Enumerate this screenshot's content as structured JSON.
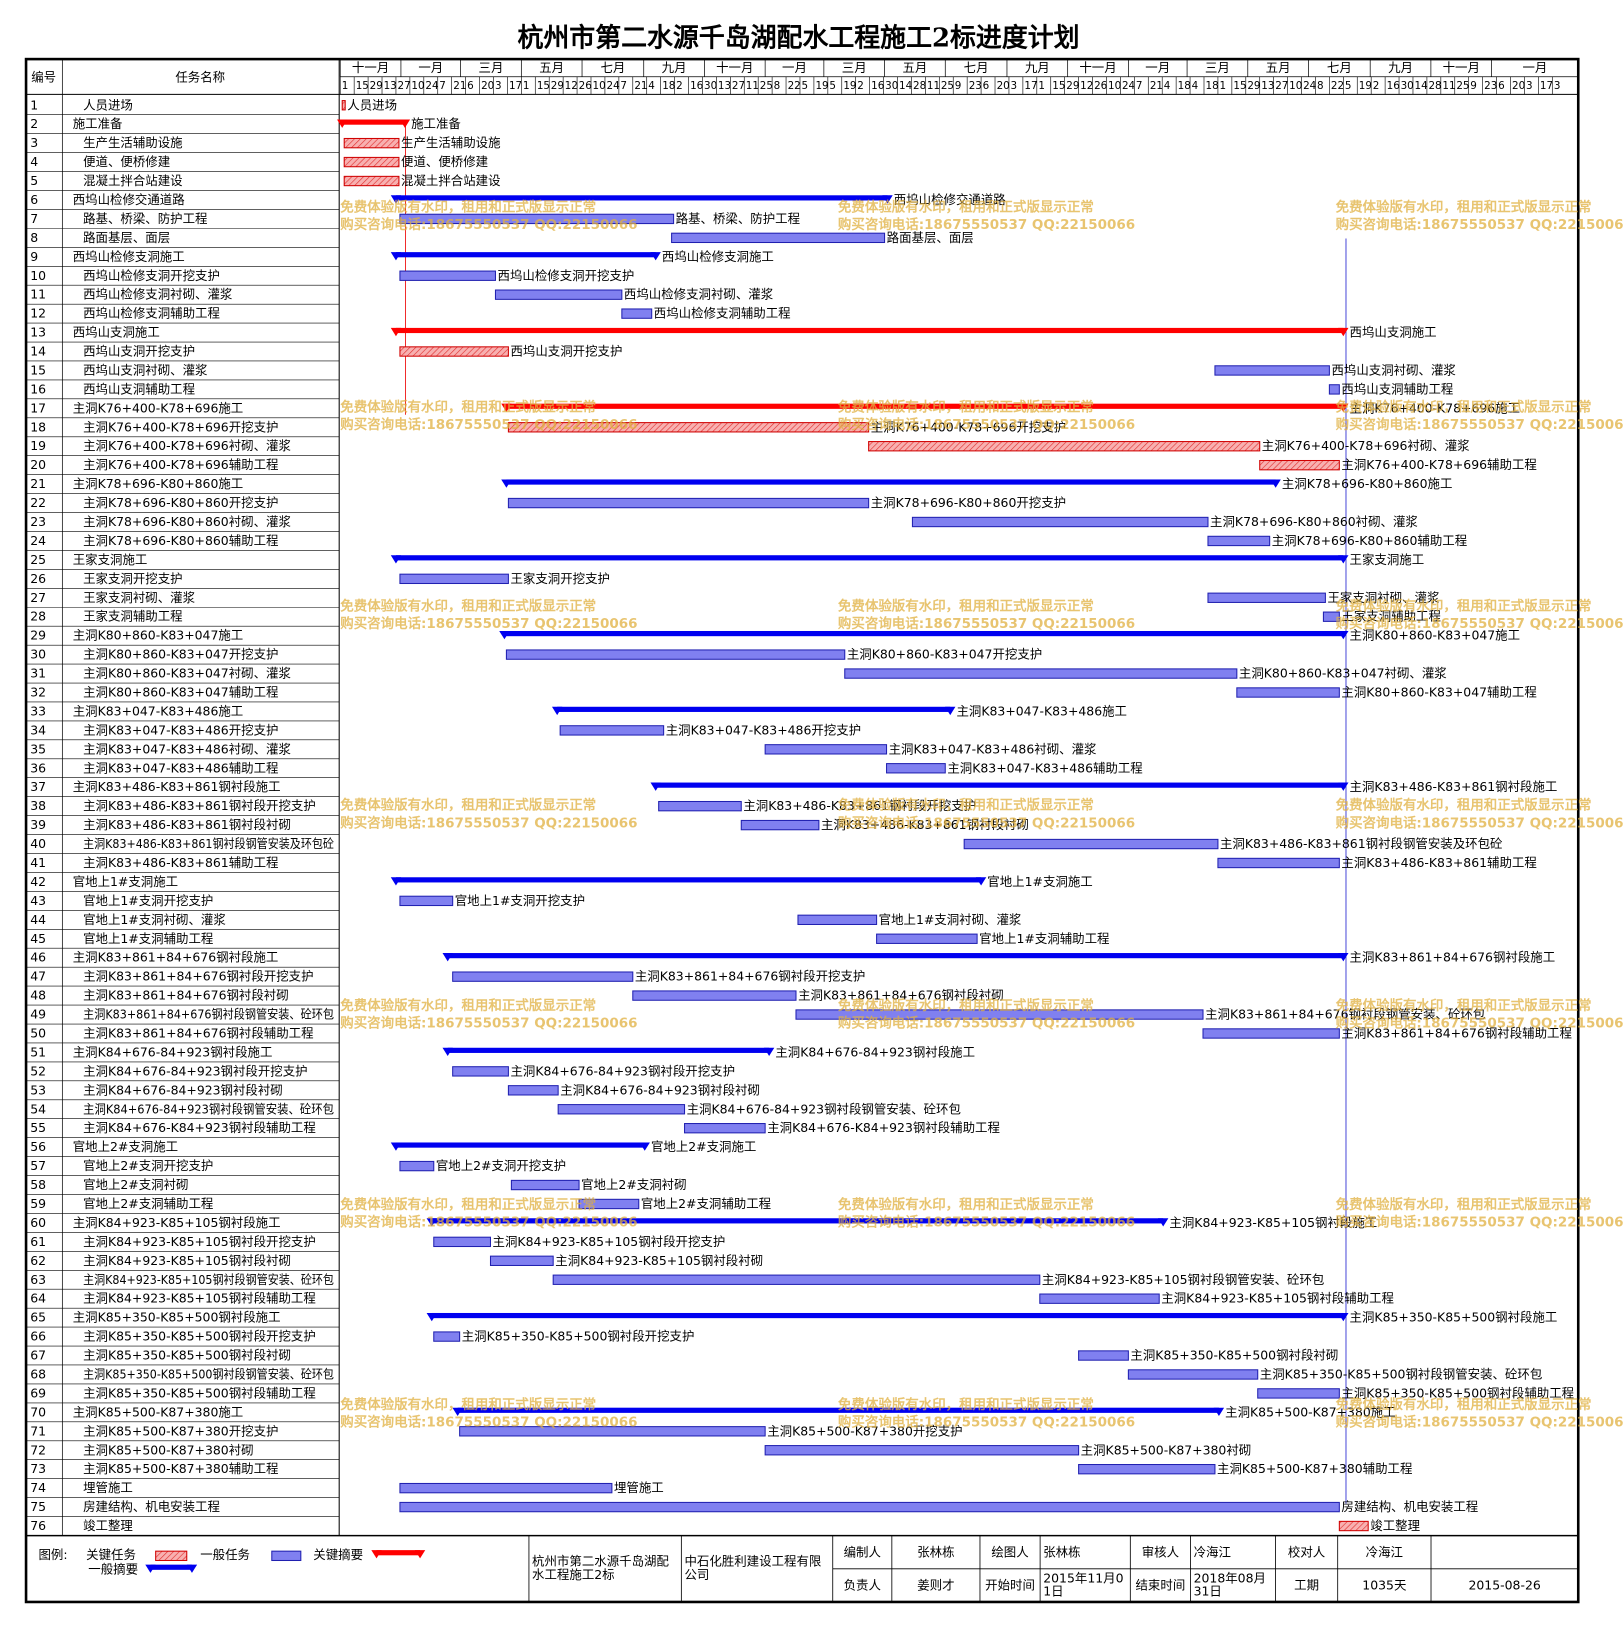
{
  "title": "杭州市第二水源千岛湖配水工程施工2标进度计划",
  "header": {
    "id": "编号",
    "name": "任务名称"
  },
  "timeline": {
    "xlim": [
      0,
      1242
    ],
    "months": [
      {
        "value": 0,
        "label": "十一月"
      },
      {
        "value": 61,
        "label": "一月"
      },
      {
        "value": 121,
        "label": "三月"
      },
      {
        "value": 182,
        "label": "五月"
      },
      {
        "value": 243,
        "label": "七月"
      },
      {
        "value": 305,
        "label": "九月"
      },
      {
        "value": 366,
        "label": "十一月"
      },
      {
        "value": 427,
        "label": "一月"
      },
      {
        "value": 486,
        "label": "三月"
      },
      {
        "value": 547,
        "label": "五月"
      },
      {
        "value": 608,
        "label": "七月"
      },
      {
        "value": 670,
        "label": "九月"
      },
      {
        "value": 731,
        "label": "十一月"
      },
      {
        "value": 792,
        "label": "一月"
      },
      {
        "value": 851,
        "label": "三月"
      },
      {
        "value": 912,
        "label": "五月"
      },
      {
        "value": 973,
        "label": "七月"
      },
      {
        "value": 1035,
        "label": "九月"
      },
      {
        "value": 1096,
        "label": "十一月"
      },
      {
        "value": 1157,
        "label": "一月"
      }
    ],
    "days": [
      {
        "value": 0,
        "label": "1"
      },
      {
        "value": 14,
        "label": "15"
      },
      {
        "value": 28,
        "label": "29"
      },
      {
        "value": 42,
        "label": "13"
      },
      {
        "value": 56,
        "label": "27"
      },
      {
        "value": 70,
        "label": "10"
      },
      {
        "value": 84,
        "label": "24"
      },
      {
        "value": 98,
        "label": "7"
      },
      {
        "value": 112,
        "label": "21"
      },
      {
        "value": 126,
        "label": "6"
      },
      {
        "value": 140,
        "label": "20"
      },
      {
        "value": 154,
        "label": "3"
      },
      {
        "value": 168,
        "label": "17"
      },
      {
        "value": 182,
        "label": "1"
      },
      {
        "value": 196,
        "label": "15"
      },
      {
        "value": 210,
        "label": "29"
      },
      {
        "value": 224,
        "label": "12"
      },
      {
        "value": 238,
        "label": "26"
      },
      {
        "value": 252,
        "label": "10"
      },
      {
        "value": 266,
        "label": "24"
      },
      {
        "value": 280,
        "label": "7"
      },
      {
        "value": 294,
        "label": "21"
      },
      {
        "value": 308,
        "label": "4"
      },
      {
        "value": 322,
        "label": "18"
      },
      {
        "value": 336,
        "label": "2"
      },
      {
        "value": 350,
        "label": "16"
      },
      {
        "value": 364,
        "label": "30"
      },
      {
        "value": 378,
        "label": "13"
      },
      {
        "value": 392,
        "label": "27"
      },
      {
        "value": 406,
        "label": "11"
      },
      {
        "value": 420,
        "label": "25"
      },
      {
        "value": 434,
        "label": "8"
      },
      {
        "value": 448,
        "label": "22"
      },
      {
        "value": 462,
        "label": "5"
      },
      {
        "value": 476,
        "label": "19"
      },
      {
        "value": 490,
        "label": "5"
      },
      {
        "value": 504,
        "label": "19"
      },
      {
        "value": 518,
        "label": "2"
      },
      {
        "value": 532,
        "label": "16"
      },
      {
        "value": 546,
        "label": "30"
      },
      {
        "value": 560,
        "label": "14"
      },
      {
        "value": 574,
        "label": "28"
      },
      {
        "value": 588,
        "label": "11"
      },
      {
        "value": 602,
        "label": "25"
      },
      {
        "value": 616,
        "label": "9"
      },
      {
        "value": 630,
        "label": "23"
      },
      {
        "value": 644,
        "label": "6"
      },
      {
        "value": 658,
        "label": "20"
      },
      {
        "value": 672,
        "label": "3"
      },
      {
        "value": 686,
        "label": "17"
      },
      {
        "value": 700,
        "label": "1"
      },
      {
        "value": 714,
        "label": "15"
      },
      {
        "value": 728,
        "label": "29"
      },
      {
        "value": 742,
        "label": "12"
      },
      {
        "value": 756,
        "label": "26"
      },
      {
        "value": 770,
        "label": "10"
      },
      {
        "value": 784,
        "label": "24"
      },
      {
        "value": 798,
        "label": "7"
      },
      {
        "value": 812,
        "label": "21"
      },
      {
        "value": 826,
        "label": "4"
      },
      {
        "value": 840,
        "label": "18"
      },
      {
        "value": 854,
        "label": "4"
      },
      {
        "value": 868,
        "label": "18"
      },
      {
        "value": 882,
        "label": "1"
      },
      {
        "value": 896,
        "label": "15"
      },
      {
        "value": 910,
        "label": "29"
      },
      {
        "value": 924,
        "label": "13"
      },
      {
        "value": 938,
        "label": "27"
      },
      {
        "value": 952,
        "label": "10"
      },
      {
        "value": 966,
        "label": "24"
      },
      {
        "value": 980,
        "label": "8"
      },
      {
        "value": 994,
        "label": "22"
      },
      {
        "value": 1008,
        "label": "5"
      },
      {
        "value": 1022,
        "label": "19"
      },
      {
        "value": 1036,
        "label": "2"
      },
      {
        "value": 1050,
        "label": "16"
      },
      {
        "value": 1064,
        "label": "30"
      },
      {
        "value": 1078,
        "label": "14"
      },
      {
        "value": 1092,
        "label": "28"
      },
      {
        "value": 1106,
        "label": "11"
      },
      {
        "value": 1120,
        "label": "25"
      },
      {
        "value": 1134,
        "label": "9"
      },
      {
        "value": 1148,
        "label": "23"
      },
      {
        "value": 1162,
        "label": "6"
      },
      {
        "value": 1176,
        "label": "20"
      },
      {
        "value": 1190,
        "label": "3"
      },
      {
        "value": 1204,
        "label": "17"
      },
      {
        "value": 1218,
        "label": "3"
      }
    ]
  },
  "tasks": [
    {
      "id": 1,
      "name": "人员进场",
      "kind": "critical-task",
      "start": 2,
      "finish": 5
    },
    {
      "id": 2,
      "name": "施工准备",
      "kind": "critical-summary",
      "start": 2,
      "finish": 65
    },
    {
      "id": 3,
      "name": "生产生活辅助设施",
      "kind": "critical-task",
      "start": 4,
      "finish": 59
    },
    {
      "id": 4,
      "name": "便道、便桥修建",
      "kind": "critical-task",
      "start": 4,
      "finish": 59
    },
    {
      "id": 5,
      "name": "混凝土拌合站建设",
      "kind": "critical-task",
      "start": 4,
      "finish": 59
    },
    {
      "id": 6,
      "name": "西坞山检修交通道路",
      "kind": "summary",
      "start": 56,
      "finish": 550
    },
    {
      "id": 7,
      "name": "路基、桥梁、防护工程",
      "kind": "task",
      "start": 60,
      "finish": 335
    },
    {
      "id": 8,
      "name": "路面基层、面层",
      "kind": "task",
      "start": 333,
      "finish": 547
    },
    {
      "id": 9,
      "name": "西坞山检修支洞施工",
      "kind": "summary",
      "start": 56,
      "finish": 317
    },
    {
      "id": 10,
      "name": "西坞山检修支洞开挖支护",
      "kind": "task",
      "start": 60,
      "finish": 156
    },
    {
      "id": 11,
      "name": "西坞山检修支洞衬砌、灌浆",
      "kind": "task",
      "start": 156,
      "finish": 283
    },
    {
      "id": 12,
      "name": "西坞山检修支洞辅助工程",
      "kind": "task",
      "start": 283,
      "finish": 313
    },
    {
      "id": 13,
      "name": "西坞山支洞施工",
      "kind": "critical-summary",
      "start": 56,
      "finish": 1008
    },
    {
      "id": 14,
      "name": "西坞山支洞开挖支护",
      "kind": "critical-task",
      "start": 60,
      "finish": 169
    },
    {
      "id": 15,
      "name": "西坞山支洞衬砌、灌浆",
      "kind": "task",
      "start": 879,
      "finish": 994
    },
    {
      "id": 16,
      "name": "西坞山支洞辅助工程",
      "kind": "task",
      "start": 994,
      "finish": 1004
    },
    {
      "id": 17,
      "name": "主洞K76+400-K78+696施工",
      "kind": "critical-summary",
      "start": 167,
      "finish": 1008
    },
    {
      "id": 18,
      "name": "主洞K76+400-K78+696开挖支护",
      "kind": "critical-task",
      "start": 169,
      "finish": 531
    },
    {
      "id": 19,
      "name": "主洞K76+400-K78+696衬砌、灌浆",
      "kind": "critical-task",
      "start": 531,
      "finish": 924
    },
    {
      "id": 20,
      "name": "主洞K76+400-K78+696辅助工程",
      "kind": "critical-task",
      "start": 924,
      "finish": 1004
    },
    {
      "id": 21,
      "name": "主洞K78+696-K80+860施工",
      "kind": "summary",
      "start": 167,
      "finish": 940
    },
    {
      "id": 22,
      "name": "主洞K78+696-K80+860开挖支护",
      "kind": "task",
      "start": 169,
      "finish": 531
    },
    {
      "id": 23,
      "name": "主洞K78+696-K80+860衬砌、灌浆",
      "kind": "task",
      "start": 575,
      "finish": 872
    },
    {
      "id": 24,
      "name": "主洞K78+696-K80+860辅助工程",
      "kind": "task",
      "start": 872,
      "finish": 934
    },
    {
      "id": 25,
      "name": "王家支洞施工",
      "kind": "summary",
      "start": 56,
      "finish": 1008
    },
    {
      "id": 26,
      "name": "王家支洞开挖支护",
      "kind": "task",
      "start": 60,
      "finish": 169
    },
    {
      "id": 27,
      "name": "王家支洞衬砌、灌浆",
      "kind": "task",
      "start": 872,
      "finish": 990
    },
    {
      "id": 28,
      "name": "王家支洞辅助工程",
      "kind": "task",
      "start": 988,
      "finish": 1004
    },
    {
      "id": 29,
      "name": "主洞K80+860-K83+047施工",
      "kind": "summary",
      "start": 165,
      "finish": 1008
    },
    {
      "id": 30,
      "name": "主洞K80+860-K83+047开挖支护",
      "kind": "task",
      "start": 167,
      "finish": 507
    },
    {
      "id": 31,
      "name": "主洞K80+860-K83+047衬砌、灌浆",
      "kind": "task",
      "start": 507,
      "finish": 901
    },
    {
      "id": 32,
      "name": "主洞K80+860-K83+047辅助工程",
      "kind": "task",
      "start": 901,
      "finish": 1004
    },
    {
      "id": 33,
      "name": "主洞K83+047-K83+486施工",
      "kind": "summary",
      "start": 218,
      "finish": 613
    },
    {
      "id": 34,
      "name": "主洞K83+047-K83+486开挖支护",
      "kind": "task",
      "start": 221,
      "finish": 325
    },
    {
      "id": 35,
      "name": "主洞K83+047-K83+486衬砌、灌浆",
      "kind": "task",
      "start": 427,
      "finish": 549
    },
    {
      "id": 36,
      "name": "主洞K83+047-K83+486辅助工程",
      "kind": "task",
      "start": 549,
      "finish": 608
    },
    {
      "id": 37,
      "name": "主洞K83+486-K83+861钢衬段施工",
      "kind": "summary",
      "start": 317,
      "finish": 1008
    },
    {
      "id": 38,
      "name": "主洞K83+486-K83+861钢衬段开挖支护",
      "kind": "task",
      "start": 320,
      "finish": 403
    },
    {
      "id": 39,
      "name": "主洞K83+486-K83+861钢衬段衬砌",
      "kind": "task",
      "start": 403,
      "finish": 481
    },
    {
      "id": 40,
      "name": "主洞K83+486-K83+861钢衬段钢管安装及环包砼",
      "kind": "task",
      "start": 627,
      "finish": 882
    },
    {
      "id": 41,
      "name": "主洞K83+486-K83+861辅助工程",
      "kind": "task",
      "start": 882,
      "finish": 1004
    },
    {
      "id": 42,
      "name": "官地上1#支洞施工",
      "kind": "summary",
      "start": 56,
      "finish": 644
    },
    {
      "id": 43,
      "name": "官地上1#支洞开挖支护",
      "kind": "task",
      "start": 60,
      "finish": 113
    },
    {
      "id": 44,
      "name": "官地上1#支洞衬砌、灌浆",
      "kind": "task",
      "start": 460,
      "finish": 539
    },
    {
      "id": 45,
      "name": "官地上1#支洞辅助工程",
      "kind": "task",
      "start": 539,
      "finish": 640
    },
    {
      "id": 46,
      "name": "主洞K83+861+84+676钢衬段施工",
      "kind": "summary",
      "start": 108,
      "finish": 1008
    },
    {
      "id": 47,
      "name": "主洞K83+861+84+676钢衬段开挖支护",
      "kind": "task",
      "start": 113,
      "finish": 294
    },
    {
      "id": 48,
      "name": "主洞K83+861+84+676钢衬段衬砌",
      "kind": "task",
      "start": 294,
      "finish": 458
    },
    {
      "id": 49,
      "name": "主洞K83+861+84+676钢衬段钢管安装、砼环包",
      "kind": "task",
      "start": 458,
      "finish": 867
    },
    {
      "id": 50,
      "name": "主洞K83+861+84+676钢衬段辅助工程",
      "kind": "task",
      "start": 867,
      "finish": 1004
    },
    {
      "id": 51,
      "name": "主洞K84+676-84+923钢衬段施工",
      "kind": "summary",
      "start": 108,
      "finish": 431
    },
    {
      "id": 52,
      "name": "主洞K84+676-84+923钢衬段开挖支护",
      "kind": "task",
      "start": 113,
      "finish": 169
    },
    {
      "id": 53,
      "name": "主洞K84+676-84+923钢衬段衬砌",
      "kind": "task",
      "start": 169,
      "finish": 219
    },
    {
      "id": 54,
      "name": "主洞K84+676-84+923钢衬段钢管安装、砼环包",
      "kind": "task",
      "start": 219,
      "finish": 346
    },
    {
      "id": 55,
      "name": "主洞K84+676-K84+923钢衬段辅助工程",
      "kind": "task",
      "start": 346,
      "finish": 427
    },
    {
      "id": 56,
      "name": "官地上2#支洞施工",
      "kind": "summary",
      "start": 56,
      "finish": 306
    },
    {
      "id": 57,
      "name": "官地上2#支洞开挖支护",
      "kind": "task",
      "start": 60,
      "finish": 94
    },
    {
      "id": 58,
      "name": "官地上2#支洞衬砌",
      "kind": "task",
      "start": 172,
      "finish": 240
    },
    {
      "id": 59,
      "name": "官地上2#支洞辅助工程",
      "kind": "task",
      "start": 240,
      "finish": 300
    },
    {
      "id": 60,
      "name": "主洞K84+923-K85+105钢衬段施工",
      "kind": "summary",
      "start": 92,
      "finish": 827
    },
    {
      "id": 61,
      "name": "主洞K84+923-K85+105钢衬段开挖支护",
      "kind": "task",
      "start": 94,
      "finish": 151
    },
    {
      "id": 62,
      "name": "主洞K84+923-K85+105钢衬段衬砌",
      "kind": "task",
      "start": 151,
      "finish": 214
    },
    {
      "id": 63,
      "name": "主洞K84+923-K85+105钢衬段钢管安装、砼环包",
      "kind": "task",
      "start": 214,
      "finish": 703
    },
    {
      "id": 64,
      "name": "主洞K84+923-K85+105钢衬段辅助工程",
      "kind": "task",
      "start": 703,
      "finish": 823
    },
    {
      "id": 65,
      "name": "主洞K85+350-K85+500钢衬段施工",
      "kind": "summary",
      "start": 92,
      "finish": 1008
    },
    {
      "id": 66,
      "name": "主洞K85+350-K85+500钢衬段开挖支护",
      "kind": "task",
      "start": 94,
      "finish": 120
    },
    {
      "id": 67,
      "name": "主洞K85+350-K85+500钢衬段衬砌",
      "kind": "task",
      "start": 742,
      "finish": 792
    },
    {
      "id": 68,
      "name": "主洞K85+350-K85+500钢衬段钢管安装、砼环包",
      "kind": "task",
      "start": 792,
      "finish": 922
    },
    {
      "id": 69,
      "name": "主洞K85+350-K85+500钢衬段辅助工程",
      "kind": "task",
      "start": 922,
      "finish": 1004
    },
    {
      "id": 70,
      "name": "主洞K85+500-K87+380施工",
      "kind": "summary",
      "start": 118,
      "finish": 883
    },
    {
      "id": 71,
      "name": "主洞K85+500-K87+380开挖支护",
      "kind": "task",
      "start": 120,
      "finish": 427
    },
    {
      "id": 72,
      "name": "主洞K85+500-K87+380衬砌",
      "kind": "task",
      "start": 427,
      "finish": 742
    },
    {
      "id": 73,
      "name": "主洞K85+500-K87+380辅助工程",
      "kind": "task",
      "start": 742,
      "finish": 879
    },
    {
      "id": 74,
      "name": "埋管施工",
      "kind": "task",
      "start": 60,
      "finish": 273
    },
    {
      "id": 75,
      "name": "房建结构、机电安装工程",
      "kind": "task",
      "start": 60,
      "finish": 1004
    },
    {
      "id": 76,
      "name": "竣工整理",
      "kind": "critical-task",
      "start": 1004,
      "finish": 1033
    }
  ],
  "watermark": [
    "免费体验版有水印，租用和正式版显示正常",
    "购买咨询电话:18675550537 QQ:22150066"
  ],
  "legend": {
    "title": "图例:",
    "items": [
      {
        "label": "关键任务",
        "kind": "critical-task"
      },
      {
        "label": "一般任务",
        "kind": "task"
      },
      {
        "label": "关键摘要",
        "kind": "critical-summary"
      },
      {
        "label": "一般摘要",
        "kind": "summary"
      }
    ]
  },
  "footer": {
    "project": "杭州市第二水源千岛湖配水工程施工2标",
    "company": "中石化胜利建设工程有限公司",
    "rows": [
      [
        "编制人",
        "张林栋",
        "绘图人",
        "张林栋",
        "审核人",
        "冷海江",
        "校对人",
        "冷海江"
      ],
      [
        "负责人",
        "姜则才",
        "开始时间",
        "2015年11月01日",
        "结束时间",
        "2018年08月31日",
        "工期",
        "1035天",
        "2015-08-26"
      ]
    ]
  }
}
